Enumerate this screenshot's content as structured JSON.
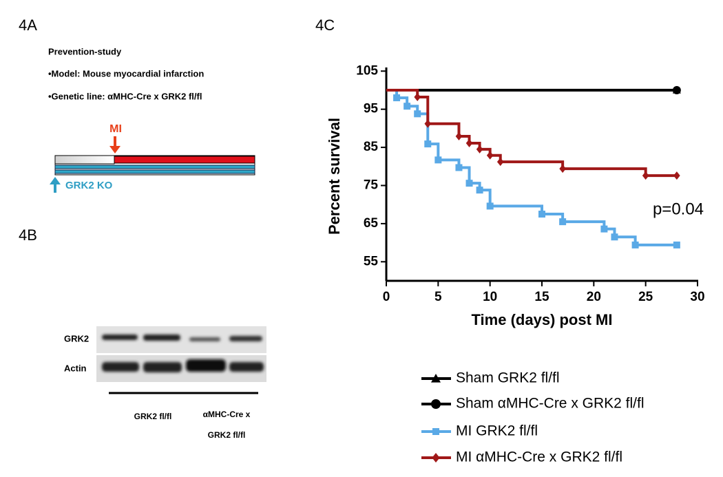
{
  "panel_a": {
    "label": "4A",
    "lines": [
      "Prevention-study",
      "•Model: Mouse myocardial infarction",
      "•Genetic line: αMHC-Cre x GRK2 fl/fl"
    ],
    "mi_label": "MI",
    "ko_label": "GRK2 KO"
  },
  "panel_b": {
    "label": "4B",
    "rows": [
      "GRK2",
      "Actin"
    ],
    "groups": [
      "GRK2 fl/fl",
      "αMHC-Cre x",
      "GRK2 fl/fl"
    ]
  },
  "chart_data": {
    "type": "step",
    "title": "4C",
    "x_label": "Time (days) post MI",
    "y_label": "Percent survival",
    "annotation": "p=0.04",
    "xlim": [
      0,
      30
    ],
    "xticks": [
      0,
      5,
      10,
      15,
      20,
      25,
      30
    ],
    "ylim": [
      50,
      105
    ],
    "yticks": [
      55,
      65,
      75,
      85,
      95,
      105
    ],
    "series": [
      {
        "name": "Sham GRK2 fl/fl",
        "color": "#000000",
        "marker": "triangle",
        "x": [
          0,
          28
        ],
        "values": [
          100,
          100
        ]
      },
      {
        "name": "Sham αMHC-Cre x GRK2 fl/fl",
        "color": "#000000",
        "marker": "circle",
        "x": [
          0,
          28
        ],
        "values": [
          100,
          100
        ]
      },
      {
        "name": "MI GRK2 fl/fl",
        "color": "#5aa9e6",
        "marker": "square",
        "x": [
          0,
          1,
          2,
          3,
          4,
          5,
          7,
          8,
          9,
          10,
          15,
          17,
          21,
          22,
          24,
          28
        ],
        "values": [
          100,
          98,
          95.8,
          93.8,
          85.9,
          81.7,
          79.7,
          75.6,
          73.8,
          69.6,
          67.5,
          65.5,
          63.6,
          61.5,
          59.4,
          59.4
        ]
      },
      {
        "name": "MI αMHC-Cre x GRK2 fl/fl",
        "color": "#a01818",
        "marker": "diamond",
        "x": [
          0,
          3,
          4,
          7,
          8,
          9,
          10,
          11,
          17,
          25,
          28
        ],
        "values": [
          100,
          98.2,
          91.2,
          87.9,
          86.1,
          84.5,
          82.9,
          81.2,
          79.4,
          77.6,
          77.6
        ]
      }
    ]
  }
}
